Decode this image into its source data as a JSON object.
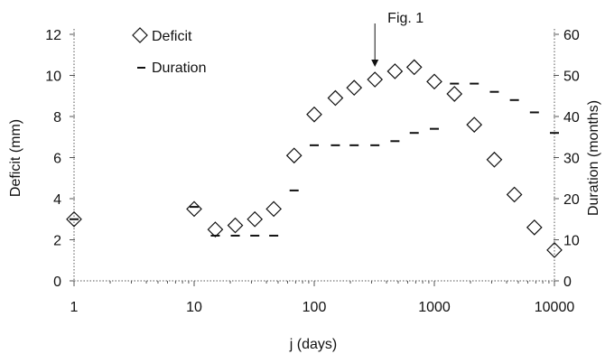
{
  "chart_data": {
    "type": "scatter",
    "xscale": "log",
    "xlabel": "j (days)",
    "ylabel_left": "Deficit (mm)",
    "ylabel_right": "Duration (months)",
    "xlim": [
      1,
      10000
    ],
    "ylim_left": [
      0,
      12
    ],
    "ylim_right": [
      0,
      60
    ],
    "x_ticks": [
      1,
      10,
      100,
      1000,
      10000
    ],
    "x_tick_labels": [
      "1",
      "10",
      "100",
      "1000",
      "10000"
    ],
    "y_left_ticks": [
      0,
      2,
      4,
      6,
      8,
      10,
      12
    ],
    "y_left_tick_labels": [
      "0",
      "2",
      "4",
      "6",
      "8",
      "10",
      "12"
    ],
    "y_right_ticks": [
      0,
      10,
      20,
      30,
      40,
      50,
      60
    ],
    "y_right_tick_labels": [
      "0",
      "10",
      "20",
      "30",
      "40",
      "50",
      "60"
    ],
    "grid": false,
    "legend_position": "top-left",
    "annotation": {
      "text": "Fig. 1",
      "x": 320
    },
    "series": [
      {
        "name": "Deficit",
        "marker": "diamond",
        "axis": "left",
        "color": "#111111",
        "points": [
          [
            1,
            3.0
          ],
          [
            10,
            3.5
          ],
          [
            15,
            2.5
          ],
          [
            22,
            2.7
          ],
          [
            32,
            3.0
          ],
          [
            46,
            3.5
          ],
          [
            68,
            6.1
          ],
          [
            100,
            8.1
          ],
          [
            150,
            8.9
          ],
          [
            215,
            9.4
          ],
          [
            320,
            9.8
          ],
          [
            470,
            10.2
          ],
          [
            680,
            10.4
          ],
          [
            1000,
            9.7
          ],
          [
            1470,
            9.1
          ],
          [
            2150,
            7.6
          ],
          [
            3160,
            5.9
          ],
          [
            4640,
            4.2
          ],
          [
            6810,
            2.6
          ],
          [
            10000,
            1.5
          ]
        ]
      },
      {
        "name": "Duration",
        "marker": "dash",
        "axis": "right",
        "color": "#111111",
        "points": [
          [
            1,
            15
          ],
          [
            10,
            18
          ],
          [
            15,
            11
          ],
          [
            22,
            11
          ],
          [
            32,
            11
          ],
          [
            46,
            11
          ],
          [
            68,
            22
          ],
          [
            100,
            33
          ],
          [
            150,
            33
          ],
          [
            215,
            33
          ],
          [
            320,
            33
          ],
          [
            470,
            34
          ],
          [
            680,
            36
          ],
          [
            1000,
            37
          ],
          [
            1470,
            48
          ],
          [
            2150,
            48
          ],
          [
            3160,
            46
          ],
          [
            4640,
            44
          ],
          [
            6810,
            41
          ],
          [
            10000,
            36
          ]
        ]
      }
    ]
  }
}
